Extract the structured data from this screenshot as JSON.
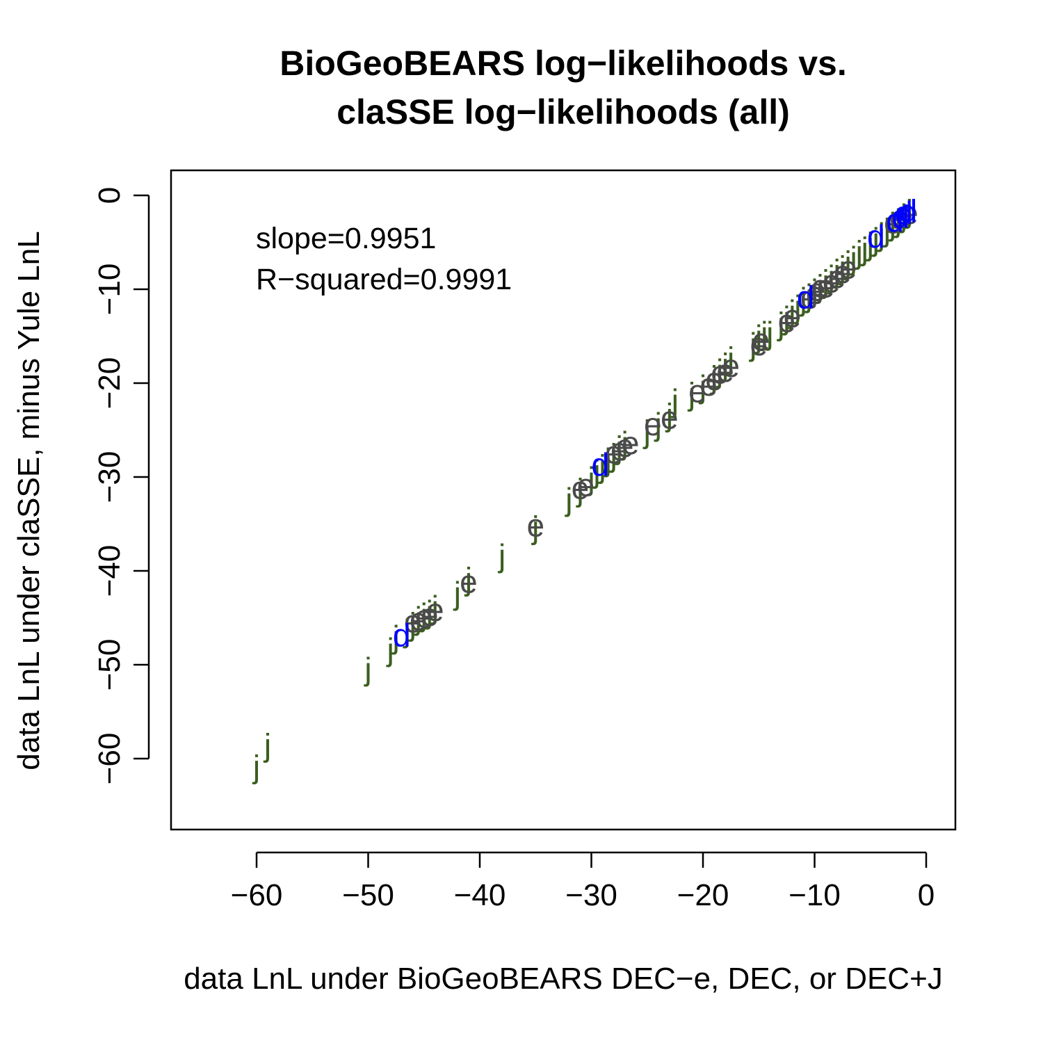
{
  "chart_data": {
    "type": "scatter",
    "title": [
      "BioGeoBEARS log−likelihoods vs.",
      "claSSE log−likelihoods (all)"
    ],
    "xlabel": "data LnL under BioGeoBEARS DEC−e, DEC, or DEC+J",
    "ylabel": "data LnL under claSSE, minus Yule LnL",
    "xlim": [
      -62.5,
      2.5
    ],
    "ylim": [
      -67,
      2.5
    ],
    "x_ticks": [
      -60,
      -50,
      -40,
      -30,
      -20,
      -10,
      0
    ],
    "x_tick_labels": [
      "−60",
      "−50",
      "−40",
      "−30",
      "−20",
      "−10",
      "0"
    ],
    "y_ticks": [
      0,
      -10,
      -20,
      -30,
      -40,
      -50,
      -60
    ],
    "y_tick_labels": [
      "0",
      "−10",
      "−20",
      "−30",
      "−40",
      "−50",
      "−60"
    ],
    "grid": false,
    "annotations": [
      "slope=0.9951",
      "R−squared=0.9991"
    ],
    "series": [
      {
        "symbol": "j",
        "color": "#3b5e1f",
        "points": [
          [
            -60,
            -61
          ],
          [
            -59,
            -58.7
          ],
          [
            -50,
            -50.6
          ],
          [
            -48,
            -48.5
          ],
          [
            -47.5,
            -47.2
          ],
          [
            -46.5,
            -46.5
          ],
          [
            -46,
            -45.8
          ],
          [
            -45.5,
            -45.2
          ],
          [
            -45,
            -44.8
          ],
          [
            -44.5,
            -44.5
          ],
          [
            -44,
            -44
          ],
          [
            -42,
            -42.5
          ],
          [
            -41,
            -41
          ],
          [
            -38,
            -38.5
          ],
          [
            -35,
            -35.5
          ],
          [
            -32,
            -32.5
          ],
          [
            -31,
            -31.5
          ],
          [
            -30,
            -30.3
          ],
          [
            -29.5,
            -29.5
          ],
          [
            -29,
            -29
          ],
          [
            -28.5,
            -28.3
          ],
          [
            -28,
            -27.8
          ],
          [
            -27.5,
            -27
          ],
          [
            -27,
            -26.5
          ],
          [
            -25,
            -25.3
          ],
          [
            -24,
            -24.5
          ],
          [
            -23,
            -23.5
          ],
          [
            -22.5,
            -22
          ],
          [
            -21,
            -21.3
          ],
          [
            -20,
            -20.5
          ],
          [
            -19,
            -19.5
          ],
          [
            -18.5,
            -18.8
          ],
          [
            -18,
            -18.2
          ],
          [
            -17.5,
            -17.5
          ],
          [
            -15.5,
            -16
          ],
          [
            -15,
            -15.2
          ],
          [
            -14.5,
            -14.8
          ],
          [
            -14,
            -14.8
          ],
          [
            -13,
            -13.8
          ],
          [
            -12.5,
            -13.2
          ],
          [
            -12,
            -12.5
          ],
          [
            -11.5,
            -12
          ],
          [
            -11,
            -11.2
          ],
          [
            -10.5,
            -10.8
          ],
          [
            -10,
            -10.3
          ],
          [
            -9.5,
            -9.8
          ],
          [
            -9,
            -9.3
          ],
          [
            -8.5,
            -8.8
          ],
          [
            -8,
            -8.2
          ],
          [
            -7.5,
            -7.8
          ],
          [
            -7,
            -7.3
          ],
          [
            -6.5,
            -6.8
          ],
          [
            -6,
            -6.2
          ],
          [
            -5.5,
            -5.8
          ],
          [
            -5,
            -5.3
          ],
          [
            -4.5,
            -4.8
          ],
          [
            -4,
            -4.3
          ],
          [
            -3.5,
            -3.8
          ],
          [
            -3,
            -3.2
          ],
          [
            -2.5,
            -2.8
          ],
          [
            -2,
            -2.3
          ],
          [
            -1.5,
            -1.8
          ]
        ]
      },
      {
        "symbol": "e",
        "color": "#4a4a4a",
        "points": [
          [
            -46,
            -45.5
          ],
          [
            -45.5,
            -45.3
          ],
          [
            -45,
            -45
          ],
          [
            -44.5,
            -44.8
          ],
          [
            -44,
            -44.3
          ],
          [
            -41,
            -41.3
          ],
          [
            -35,
            -35.3
          ],
          [
            -31,
            -31.3
          ],
          [
            -30.5,
            -31
          ],
          [
            -28,
            -27.5
          ],
          [
            -27.5,
            -27.2
          ],
          [
            -27,
            -26.8
          ],
          [
            -26.5,
            -26.5
          ],
          [
            -24.5,
            -24.5
          ],
          [
            -23,
            -23.8
          ],
          [
            -20.5,
            -21
          ],
          [
            -19.5,
            -20.3
          ],
          [
            -19,
            -19.7
          ],
          [
            -18.5,
            -19
          ],
          [
            -18,
            -18.8
          ],
          [
            -17.5,
            -18.3
          ],
          [
            -15,
            -16
          ],
          [
            -14.8,
            -15.5
          ],
          [
            -12.5,
            -13.5
          ],
          [
            -12,
            -13
          ],
          [
            -10.5,
            -11
          ],
          [
            -10,
            -10.5
          ],
          [
            -9.8,
            -10.2
          ],
          [
            -9.5,
            -9.8
          ],
          [
            -9,
            -9.8
          ],
          [
            -8.5,
            -9.3
          ],
          [
            -8,
            -8.8
          ],
          [
            -7.5,
            -8.3
          ],
          [
            -7,
            -7.8
          ],
          [
            -3,
            -3
          ],
          [
            -2.5,
            -2.5
          ],
          [
            -2,
            -2.2
          ],
          [
            -1.5,
            -2
          ]
        ]
      },
      {
        "symbol": "d",
        "color": "#0000ff",
        "points": [
          [
            -47,
            -47
          ],
          [
            -29.2,
            -28.8
          ],
          [
            -10.8,
            -11
          ],
          [
            -4.5,
            -4.5
          ],
          [
            -2.8,
            -2.8
          ],
          [
            -2.3,
            -2.4
          ],
          [
            -2,
            -2
          ],
          [
            -1.6,
            -1.8
          ]
        ]
      }
    ]
  }
}
